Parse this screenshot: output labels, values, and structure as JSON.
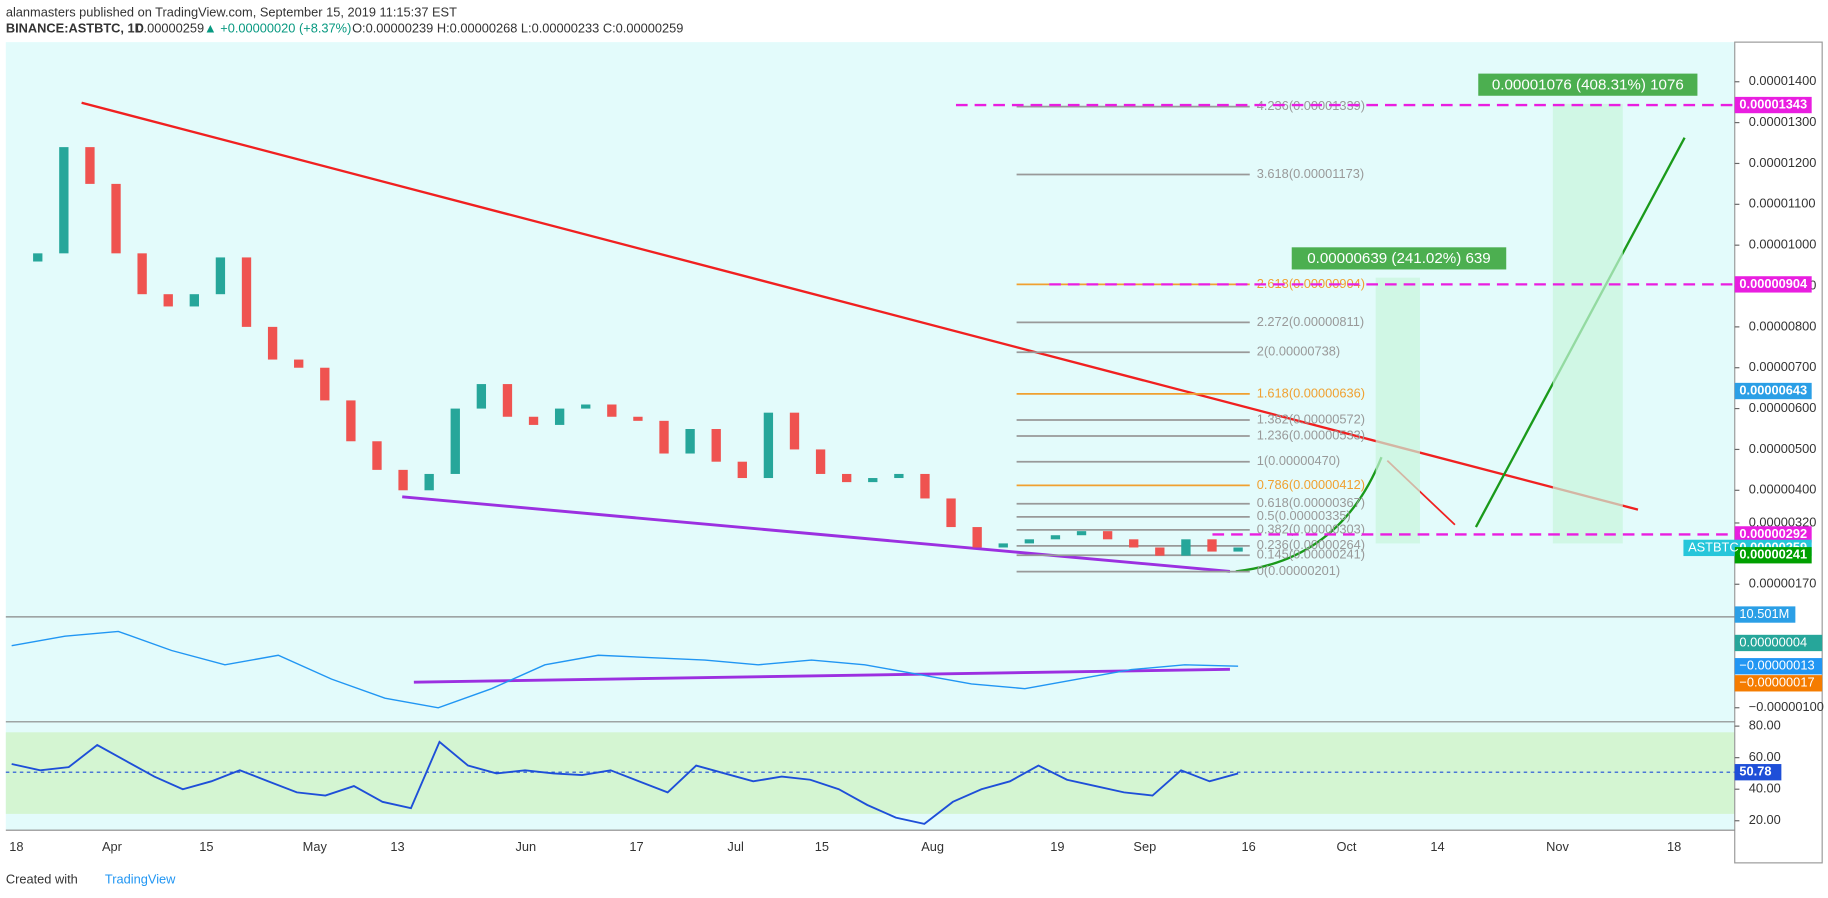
{
  "header": {
    "publisher": "alanmasters published on TradingView.com, September 15, 2019 11:15:37 EST",
    "symbol": "BINANCE:ASTBTC, 1D",
    "last": "0.00000259",
    "change": "▲ +0.00000020 (+8.37%)",
    "ohlc": "O:0.00000239 H:0.00000268 L:0.00000233 C:0.00000259"
  },
  "chart_data": [
    {
      "type": "candles",
      "categories": [
        null,
        null,
        null,
        null,
        null,
        null,
        null,
        null,
        null,
        null,
        null,
        null,
        null,
        null,
        null,
        null,
        null,
        null,
        null,
        null,
        null,
        null,
        null,
        null,
        null,
        null,
        null,
        null,
        null,
        null,
        null,
        null,
        null,
        null,
        null,
        null,
        null,
        null,
        null,
        null,
        null,
        null,
        null,
        null,
        null,
        null,
        null,
        null
      ],
      "values": [
        9.6e-06,
        9.8e-06,
        1.24e-05,
        1.15e-05,
        9.8e-06,
        8.8e-06,
        8.5e-06,
        8.8e-06,
        9.7e-06,
        8e-06,
        7.2e-06,
        7e-06,
        6.2e-06,
        5.2e-06,
        4.5e-06,
        4e-06,
        4.4e-06,
        6e-06,
        6.6e-06,
        5.8e-06,
        5.6e-06,
        6e-06,
        6.1e-06,
        5.8e-06,
        5.7e-06,
        4.9e-06,
        5.5e-06,
        4.7e-06,
        4.3e-06,
        5.9e-06,
        5e-06,
        4.4e-06,
        4.2e-06,
        4.3e-06,
        4.4e-06,
        3.8e-06,
        3.1e-06,
        2.6e-06,
        2.7e-06,
        2.8e-06,
        2.9e-06,
        3e-06,
        2.8e-06,
        2.6e-06,
        2.4e-06,
        2.8e-06,
        2.5e-06,
        2.6e-06
      ],
      "ylim": [
        9.3e-07,
        1.497e-05
      ],
      "yticks": [
        {
          "value": 1.4e-05,
          "label": "0.00001400"
        },
        {
          "value": 1.3e-05,
          "label": "0.00001300"
        },
        {
          "value": 1.2e-05,
          "label": "0.00001200"
        },
        {
          "value": 1.1e-05,
          "label": "0.00001100"
        },
        {
          "value": 1e-05,
          "label": "0.00001000"
        },
        {
          "value": 9e-06,
          "label": "0.00000900"
        },
        {
          "value": 8e-06,
          "label": "0.00000800"
        },
        {
          "value": 7e-06,
          "label": "0.00000700"
        },
        {
          "value": 6e-06,
          "label": "0.00000600"
        },
        {
          "value": 5e-06,
          "label": "0.00000500"
        },
        {
          "value": 4e-06,
          "label": "0.00000400"
        },
        {
          "value": 3.2e-06,
          "label": "0.00000320"
        },
        {
          "value": 1.7e-06,
          "label": "0.00000170"
        }
      ],
      "price_labels": [
        {
          "value": 1.343e-05,
          "label": "0.00001343",
          "color": "#e91ee0"
        },
        {
          "value": 9.04e-06,
          "label": "0.00000904",
          "color": "#e91ee0"
        },
        {
          "value": 6.43e-06,
          "label": "0.00000643",
          "color": "#2b9fe6"
        },
        {
          "value": 2.92e-06,
          "label": "0.00000292",
          "color": "#e91ee0"
        },
        {
          "value": 2.59e-06,
          "label": "0.00000259",
          "color": "#26c6da"
        },
        {
          "value": 2.41e-06,
          "label": "0.00000241",
          "color": "#00a000"
        }
      ],
      "symbol_tag": "ASTBTC",
      "volume_label": "10.501M",
      "fib_levels": [
        {
          "value": 1.339e-05,
          "label": "4.236(0.00001339)"
        },
        {
          "value": 1.173e-05,
          "label": "3.618(0.00001173)"
        },
        {
          "value": 9.04e-06,
          "label": "2.618(0.00000904)"
        },
        {
          "value": 8.11e-06,
          "label": "2.272(0.00000811)"
        },
        {
          "value": 7.38e-06,
          "label": "2(0.00000738)"
        },
        {
          "value": 6.36e-06,
          "label": "1.618(0.00000636)"
        },
        {
          "value": 5.72e-06,
          "label": "1.382(0.00000572)"
        },
        {
          "value": 5.33e-06,
          "label": "1.236(0.00000533)"
        },
        {
          "value": 4.7e-06,
          "label": "1(0.00000470)"
        },
        {
          "value": 4.12e-06,
          "label": "0.786(0.00000412)"
        },
        {
          "value": 3.67e-06,
          "label": "0.618(0.00000367)"
        },
        {
          "value": 3.35e-06,
          "label": "0.5(0.00000335)"
        },
        {
          "value": 3.03e-06,
          "label": "0.382(0.00000303)"
        },
        {
          "value": 2.64e-06,
          "label": "0.236(0.00000264)"
        },
        {
          "value": 2.41e-06,
          "label": "0.145(0.00000241)"
        },
        {
          "value": 2.01e-06,
          "label": "0(0.00000201)"
        }
      ],
      "callouts": [
        "0.00001076 (408.31%) 1076",
        "0.00000639 (241.02%) 639"
      ],
      "time_labels": [
        "18",
        "Apr",
        "15",
        "May",
        "13",
        "Jun",
        "17",
        "Jul",
        "15",
        "Aug",
        "19",
        "Sep",
        "16",
        "Oct",
        "14",
        "Nov",
        "18"
      ]
    },
    {
      "type": "macd",
      "values": [
        3e-07,
        5e-07,
        6e-07,
        2e-07,
        -1e-07,
        1e-07,
        -4e-07,
        -8e-07,
        -1e-06,
        -6e-07,
        -1e-07,
        1e-07,
        5e-08,
        0,
        -1e-07,
        0,
        -1e-07,
        -3e-07,
        -5e-07,
        -6e-07,
        -4e-07,
        -2e-07,
        -1e-07,
        -1.3e-07
      ],
      "ylim": [
        -1.27e-06,
        8.8e-07
      ],
      "yticks": [
        {
          "value": -1e-06,
          "label": "−0.00000100"
        }
      ],
      "value_labels": [
        {
          "value": 4e-08,
          "label": "0.00000004",
          "color": "#26a69a"
        },
        {
          "value": -1.3e-07,
          "label": "−0.00000013",
          "color": "#2196f3"
        },
        {
          "value": -1.7e-07,
          "label": "−0.00000017",
          "color": "#f57c00"
        }
      ]
    },
    {
      "type": "rsi",
      "values": [
        56,
        52,
        54,
        68,
        58,
        48,
        40,
        45,
        52,
        45,
        38,
        36,
        42,
        32,
        28,
        70,
        55,
        50,
        52,
        50,
        49,
        52,
        45,
        38,
        55,
        50,
        45,
        48,
        46,
        40,
        30,
        22,
        18,
        32,
        40,
        45,
        55,
        46,
        42,
        38,
        36,
        52,
        45,
        50
      ],
      "ylim": [
        14,
        82
      ],
      "yticks": [
        {
          "value": 80,
          "label": "80.00"
        },
        {
          "value": 60,
          "label": "60.00"
        },
        {
          "value": 40,
          "label": "40.00"
        },
        {
          "value": 20,
          "label": "20.00"
        }
      ],
      "last_label": "50.78",
      "last": 50.78
    }
  ],
  "footer": {
    "created": "Created with",
    "brand": "TradingView"
  }
}
